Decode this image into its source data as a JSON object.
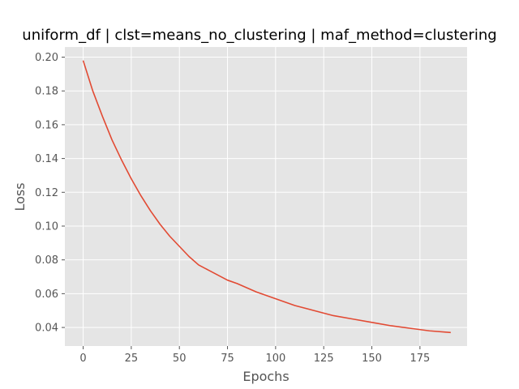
{
  "chart_data": {
    "type": "line",
    "title": "uniform_df | clst=means_no_clustering | maf_method=clustering",
    "xlabel": "Epochs",
    "ylabel": "Loss",
    "xlim": [
      -9.5,
      199.5
    ],
    "ylim": [
      0.029,
      0.206
    ],
    "xticks": [
      0,
      25,
      50,
      75,
      100,
      125,
      150,
      175
    ],
    "yticks": [
      0.04,
      0.06,
      0.08,
      0.1,
      0.12,
      0.14,
      0.16,
      0.18,
      0.2
    ],
    "ytick_labels": [
      "0.04",
      "0.06",
      "0.08",
      "0.10",
      "0.12",
      "0.14",
      "0.16",
      "0.18",
      "0.20"
    ],
    "grid": true,
    "background": "#e5e5e5",
    "series": [
      {
        "color": "#e24a33",
        "x": [
          0,
          5,
          10,
          15,
          20,
          25,
          30,
          35,
          40,
          45,
          50,
          55,
          60,
          65,
          70,
          75,
          80,
          90,
          100,
          110,
          120,
          130,
          140,
          150,
          160,
          170,
          180,
          191
        ],
        "y": [
          0.198,
          0.18,
          0.165,
          0.151,
          0.139,
          0.128,
          0.118,
          0.109,
          0.101,
          0.094,
          0.088,
          0.082,
          0.077,
          0.074,
          0.071,
          0.068,
          0.066,
          0.061,
          0.057,
          0.053,
          0.05,
          0.047,
          0.045,
          0.043,
          0.041,
          0.0395,
          0.038,
          0.037
        ]
      }
    ]
  }
}
